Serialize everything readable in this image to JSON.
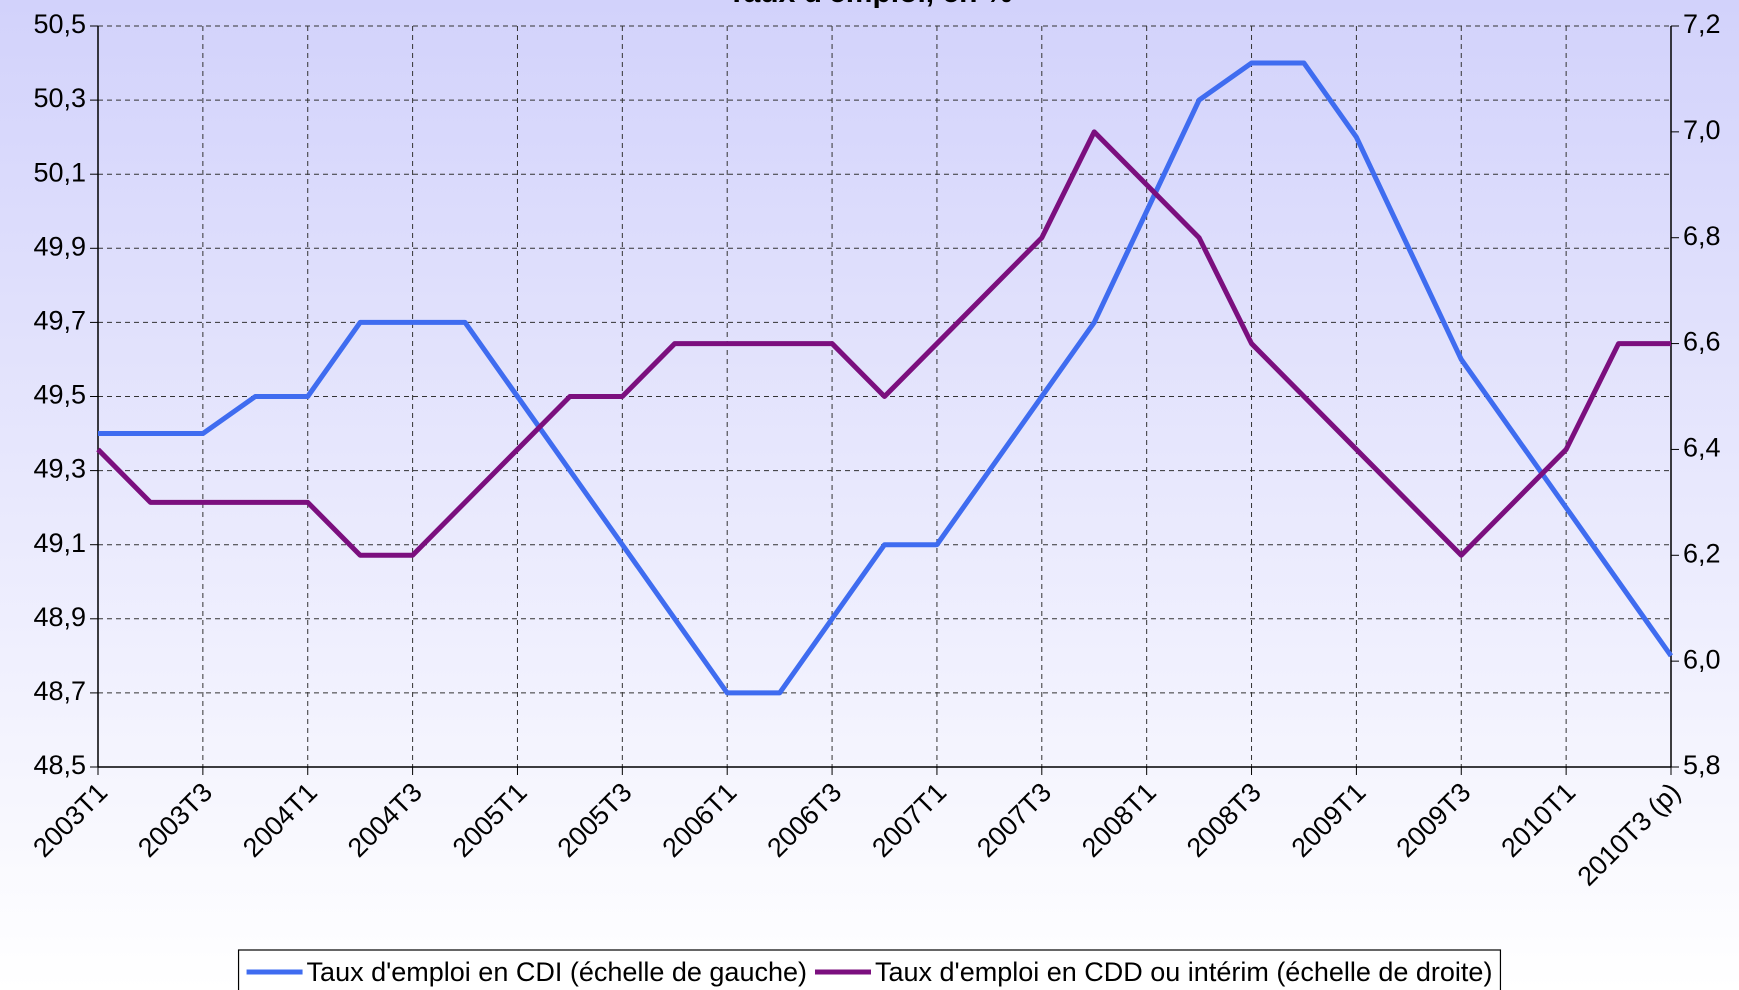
{
  "chart_data": {
    "type": "line",
    "title": "Taux d'emploi, en %",
    "categories": [
      "2003T1",
      null,
      "2003T3",
      null,
      "2004T1",
      null,
      "2004T3",
      null,
      "2005T1",
      null,
      "2005T3",
      null,
      "2006T1",
      null,
      "2006T3",
      null,
      "2007T1",
      null,
      "2007T3",
      null,
      "2008T1",
      null,
      "2008T3",
      null,
      "2009T1",
      null,
      "2009T3",
      null,
      "2010T1",
      null,
      "2010T3 (p)"
    ],
    "series": [
      {
        "name": "Taux d'emploi en CDI (échelle de gauche)",
        "color": "#3f6cf0",
        "values": [
          49.4,
          49.4,
          49.4,
          49.5,
          49.5,
          49.7,
          49.7,
          49.7,
          49.5,
          49.3,
          49.1,
          48.9,
          48.7,
          48.7,
          48.9,
          49.1,
          49.1,
          49.3,
          49.5,
          49.7,
          50.0,
          50.3,
          50.4,
          50.4,
          50.2,
          49.9,
          49.6,
          49.4,
          49.2,
          49.0,
          48.8
        ]
      },
      {
        "name": "Taux d'emploi en CDD ou intérim (échelle de droite)",
        "color": "#7b0f7e",
        "axis": "y2",
        "values": [
          6.4,
          6.3,
          6.3,
          6.3,
          6.3,
          6.2,
          6.2,
          6.3,
          6.4,
          6.5,
          6.5,
          6.6,
          6.6,
          6.6,
          6.6,
          6.5,
          6.6,
          6.7,
          6.8,
          7.0,
          6.9,
          6.8,
          6.6,
          6.5,
          6.4,
          6.3,
          6.2,
          6.3,
          6.4,
          6.6,
          6.6
        ]
      }
    ],
    "ylim": [
      48.5,
      50.5
    ],
    "yticks": [
      {
        "value": 48.5,
        "label": "48,5"
      },
      {
        "value": 48.7,
        "label": "48,7"
      },
      {
        "value": 48.9,
        "label": "48,9"
      },
      {
        "value": 49.1,
        "label": "49,1"
      },
      {
        "value": 49.3,
        "label": "49,3"
      },
      {
        "value": 49.5,
        "label": "49,5"
      },
      {
        "value": 49.7,
        "label": "49,7"
      },
      {
        "value": 49.9,
        "label": "49,9"
      },
      {
        "value": 50.1,
        "label": "50,1"
      },
      {
        "value": 50.3,
        "label": "50,3"
      },
      {
        "value": 50.5,
        "label": "50,5"
      }
    ],
    "y2lim": [
      5.8,
      7.2
    ],
    "y2ticks": [
      {
        "value": 5.8,
        "label": "5,8"
      },
      {
        "value": 6.0,
        "label": "6,0"
      },
      {
        "value": 6.2,
        "label": "6,2"
      },
      {
        "value": 6.4,
        "label": "6,4"
      },
      {
        "value": 6.6,
        "label": "6,6"
      },
      {
        "value": 6.8,
        "label": "6,8"
      },
      {
        "value": 7.0,
        "label": "7,0"
      },
      {
        "value": 7.2,
        "label": "7,2"
      }
    ],
    "grid": true,
    "legend": "bottom"
  }
}
